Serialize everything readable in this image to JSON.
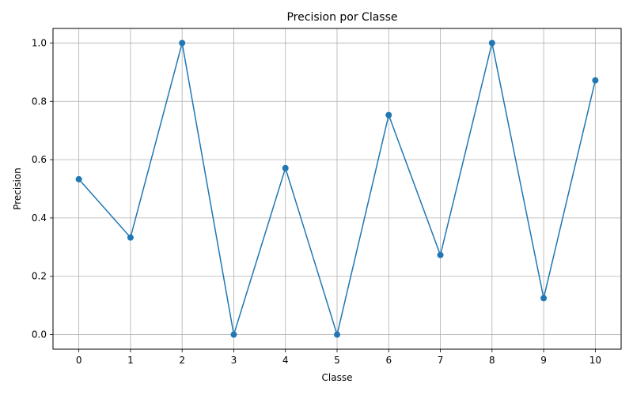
{
  "chart_data": {
    "type": "line",
    "title": "Precision por Classe",
    "xlabel": "Classe",
    "ylabel": "Precision",
    "x": [
      0,
      1,
      2,
      3,
      4,
      5,
      6,
      7,
      8,
      9,
      10
    ],
    "series": [
      {
        "values": [
          0.533,
          0.333,
          1.0,
          0.0,
          0.571,
          0.0,
          0.753,
          0.273,
          1.0,
          0.125,
          0.872
        ],
        "color": "#1f77b4",
        "marker": "circle"
      }
    ],
    "xlim": [
      -0.5,
      10.5
    ],
    "ylim": [
      -0.05,
      1.05
    ],
    "xticks": [
      "0",
      "1",
      "2",
      "3",
      "4",
      "5",
      "6",
      "7",
      "8",
      "9",
      "10"
    ],
    "yticks": [
      "0.0",
      "0.2",
      "0.4",
      "0.6",
      "0.8",
      "1.0"
    ],
    "grid": true
  }
}
